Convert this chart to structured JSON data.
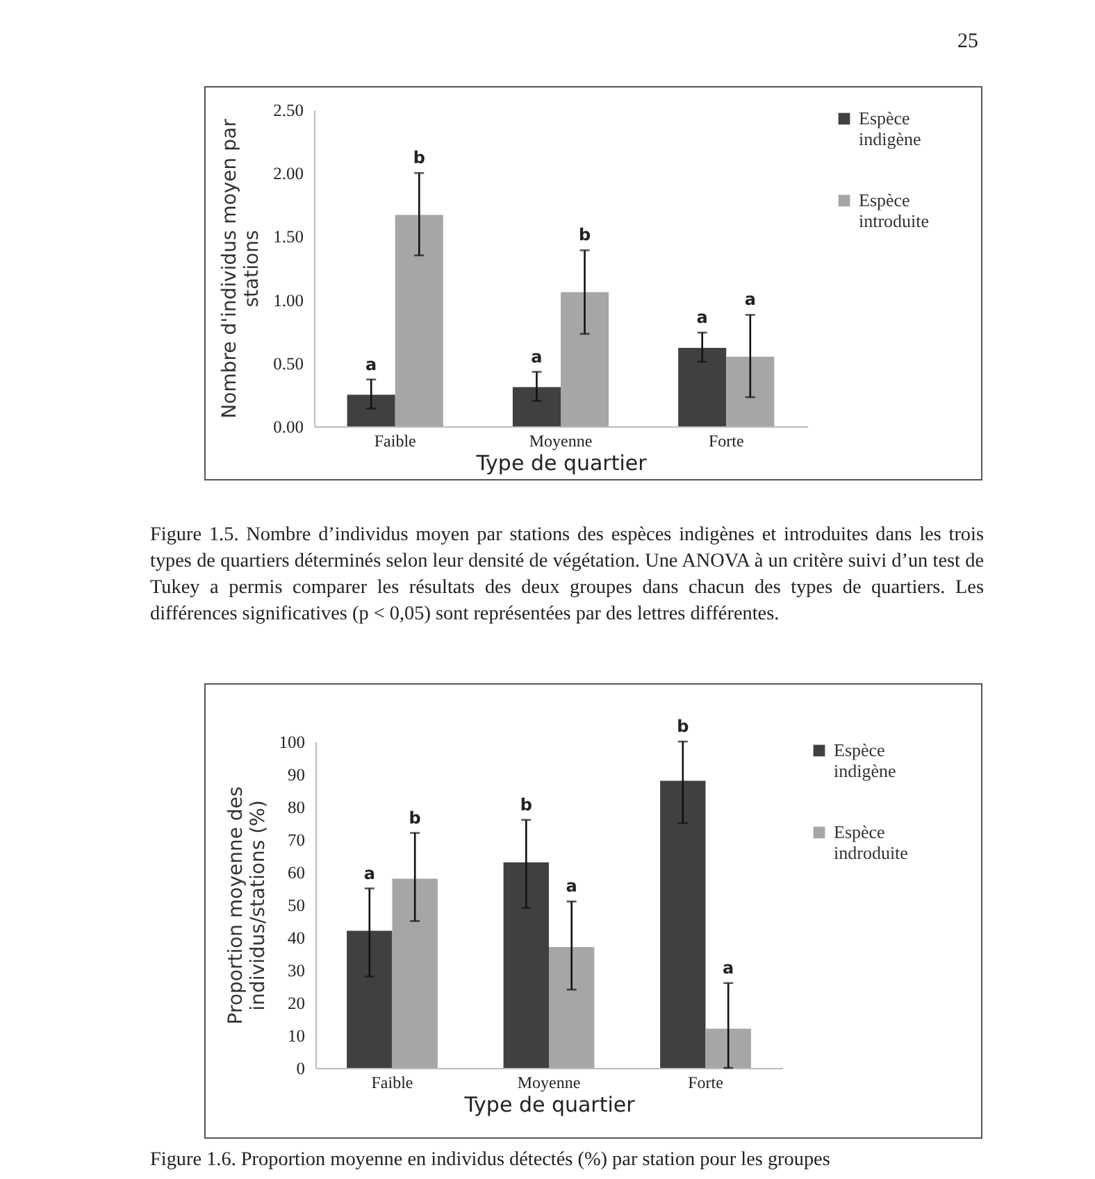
{
  "chart_data": [
    {
      "type": "bar",
      "xlabel": "Type de quartier",
      "ylabel": "Nombre d'individus moyen par stations",
      "categories": [
        "Faible",
        "Moyenne",
        "Forte"
      ],
      "series": [
        {
          "name": "Espèce indigène",
          "color": "#404040",
          "values": [
            0.25,
            0.31,
            0.62
          ],
          "errors": [
            [
              0.14,
              0.37
            ],
            [
              0.2,
              0.43
            ],
            [
              0.51,
              0.74
            ]
          ],
          "value_labels": [
            "a",
            "a",
            "a"
          ]
        },
        {
          "name": "Espèce introduite",
          "color": "#a6a6a6",
          "values": [
            1.67,
            1.06,
            0.55
          ],
          "errors": [
            [
              1.35,
              2.0
            ],
            [
              0.73,
              1.39
            ],
            [
              0.23,
              0.88
            ]
          ],
          "value_labels": [
            "b",
            "b",
            "a"
          ]
        }
      ],
      "ylim": [
        0,
        2.5
      ],
      "yticks": [
        {
          "value": 0,
          "label": "0.00"
        },
        {
          "value": 0.5,
          "label": "0.50"
        },
        {
          "value": 1,
          "label": "1.00"
        },
        {
          "value": 1.5,
          "label": "1.50"
        },
        {
          "value": 2,
          "label": "2.00"
        },
        {
          "value": 2.5,
          "label": "2.50"
        }
      ],
      "grid": false,
      "legend": "right",
      "annotations": [
        "25",
        "Figure 1.5. Nombre d’individus moyen par stations des espèces indigènes et introduites dans les trois types de quartiers déterminés selon leur densité de végétation. Une ANOVA à un critère suivi d’un test de Tukey a permis comparer les résultats des deux groupes dans chacun des types de quartiers. Les différences significatives (p < 0,05) sont représentées par des lettres différentes."
      ]
    },
    {
      "type": "bar",
      "xlabel": "Type de quartier",
      "ylabel": "Proportion moyenne des individus/stations (%)",
      "categories": [
        "Faible",
        "Moyenne",
        "Forte"
      ],
      "series": [
        {
          "name": "Espèce indigène",
          "color": "#404040",
          "values": [
            42,
            63,
            88
          ],
          "errors": [
            [
              28,
              55
            ],
            [
              49,
              76
            ],
            [
              75,
              100
            ]
          ],
          "value_labels": [
            "a",
            "b",
            "b"
          ]
        },
        {
          "name": "Espèce indroduite",
          "color": "#a6a6a6",
          "values": [
            58,
            37,
            12
          ],
          "errors": [
            [
              45,
              72
            ],
            [
              24,
              51
            ],
            [
              0,
              26
            ]
          ],
          "value_labels": [
            "b",
            "a",
            "a"
          ]
        }
      ],
      "ylim": [
        0,
        100
      ],
      "yticks": [
        0,
        10,
        20,
        30,
        40,
        50,
        60,
        70,
        80,
        90,
        100
      ],
      "grid": false,
      "legend": "right",
      "annotations": [
        "Figure 1.6. Proportion moyenne en individus détectés (%) par station pour les groupes"
      ]
    }
  ]
}
